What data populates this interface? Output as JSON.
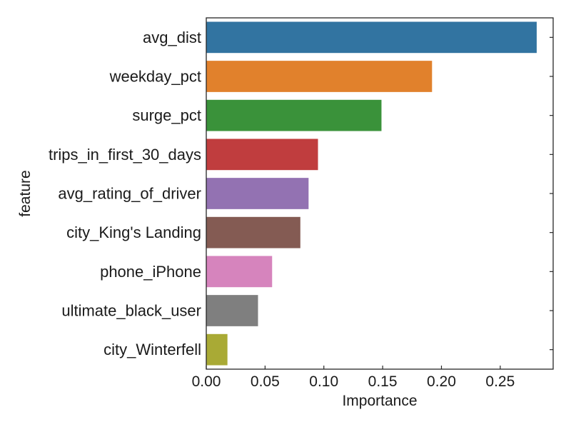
{
  "chart_data": {
    "type": "bar",
    "orientation": "horizontal",
    "title": "",
    "xlabel": "Importance",
    "ylabel": "feature",
    "xlim": [
      0.0,
      0.295
    ],
    "xticks": [
      0.0,
      0.05,
      0.1,
      0.15,
      0.2,
      0.25
    ],
    "xtick_labels": [
      "0.00",
      "0.05",
      "0.10",
      "0.15",
      "0.20",
      "0.25"
    ],
    "grid": false,
    "legend": "none",
    "categories": [
      "avg_dist",
      "weekday_pct",
      "surge_pct",
      "trips_in_first_30_days",
      "avg_rating_of_driver",
      "city_King's Landing",
      "phone_iPhone",
      "ultimate_black_user",
      "city_Winterfell"
    ],
    "values": [
      0.281,
      0.192,
      0.149,
      0.095,
      0.087,
      0.08,
      0.056,
      0.044,
      0.018
    ],
    "colors": [
      "#3274a1",
      "#e1812c",
      "#3a923a",
      "#c03d3e",
      "#9372b2",
      "#845b53",
      "#d684bd",
      "#7f7f7f",
      "#a9aa35"
    ]
  }
}
